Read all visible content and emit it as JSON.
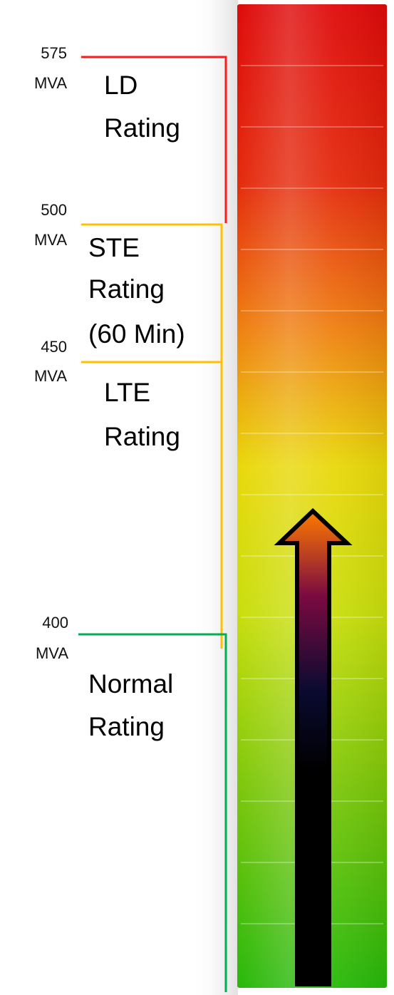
{
  "colors": {
    "ld": "#ff1a1a",
    "ste": "#ffc000",
    "lte": "#ffc000",
    "normal": "#00b050",
    "bar_top": "#de0a0a",
    "bar_mid": "#e9d80a",
    "bar_bottom": "#27b80a",
    "arrow_head": "#ff7a00",
    "arrow_mid": "#7a0a40",
    "arrow_body": "#000000"
  },
  "levels": [
    {
      "value": "575",
      "unit": "MVA"
    },
    {
      "value": "500",
      "unit": "MVA"
    },
    {
      "value": "450",
      "unit": "MVA"
    },
    {
      "value": "400",
      "unit": "MVA"
    }
  ],
  "ratings": [
    {
      "lines": [
        "LD",
        "Rating"
      ]
    },
    {
      "lines": [
        "STE",
        "Rating",
        "(60 Min)"
      ]
    },
    {
      "lines": [
        "LTE",
        "Rating"
      ]
    },
    {
      "lines": [
        "Normal",
        "Rating"
      ]
    }
  ]
}
